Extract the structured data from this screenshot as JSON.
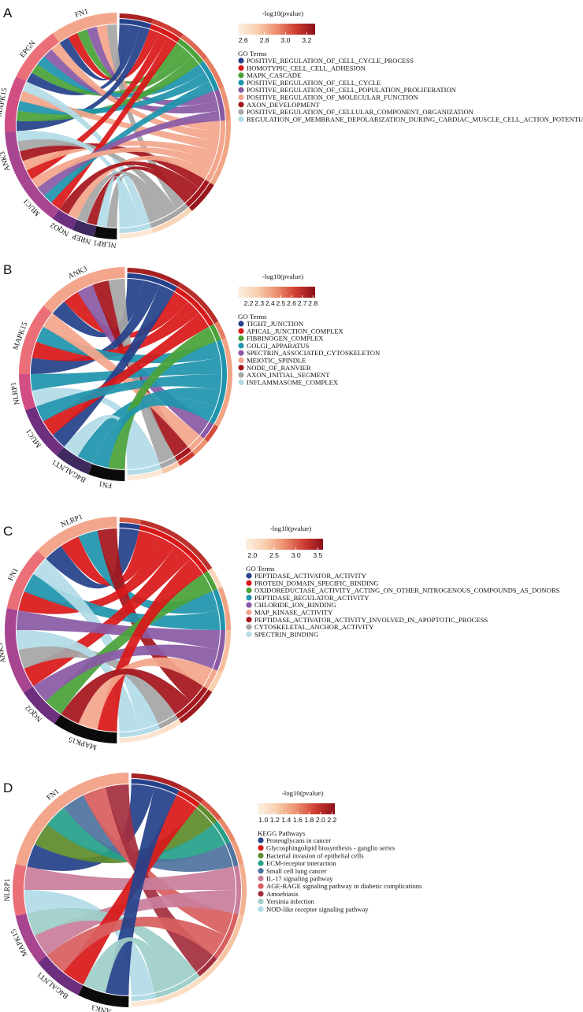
{
  "colors": {
    "term_palette": [
      "#26428b",
      "#d9191a",
      "#4aa23a",
      "#2094ad",
      "#8a5aa5",
      "#f3a68c",
      "#a5171d",
      "#a6a6a6",
      "#b2dbe7"
    ],
    "kegg_palette": [
      "#26428b",
      "#d9191a",
      "#5f8c2c",
      "#26a08a",
      "#50739f",
      "#c97e9b",
      "#d85f5f",
      "#a52f3f",
      "#9ecfc8",
      "#b2dbe7"
    ],
    "gene_palette": [
      "#f3a68c",
      "#eb6f79",
      "#d04e82",
      "#a84591",
      "#6f2f7f",
      "#3e2a5e",
      "#0b0b0b"
    ],
    "scale_gradient": [
      "#fdf1e4",
      "#f8cfae",
      "#ec8f6f",
      "#cf3d32",
      "#8b1018"
    ]
  },
  "chart_data": [
    {
      "panel": "A",
      "type": "chord",
      "genes": [
        "FN1",
        "EPGN",
        "MAPK15",
        "ANK3",
        "MUC1",
        "NQO2",
        "NREP",
        "NLRP1"
      ],
      "legend_title": "GO Terms",
      "terms": [
        {
          "name": "POSITIVE_REGULATION_OF_CELL_CYCLE_PROCESS",
          "neglog10p": 3.2
        },
        {
          "name": "HOMOTYPIC_CELL_CELL_ADHESION",
          "neglog10p": 3.1
        },
        {
          "name": "MAPK_CASCADE",
          "neglog10p": 3.0
        },
        {
          "name": "POSITIVE_REGULATION_OF_CELL_CYCLE",
          "neglog10p": 2.95
        },
        {
          "name": "POSITIVE_REGULATION_OF_CELL_POPULATION_PROLIFERATION",
          "neglog10p": 2.9
        },
        {
          "name": "POSITIVE_REGULATION_OF_MOLECULAR_FUNCTION",
          "neglog10p": 2.85
        },
        {
          "name": "AXON_DEVELOPMENT",
          "neglog10p": 3.25
        },
        {
          "name": "POSITIVE_REGULATION_OF_CELLULAR_COMPONENT_ORGANIZATION",
          "neglog10p": 2.7
        },
        {
          "name": "REGULATION_OF_MEMBRANE_DEPOLARIZATION_DURING_CARDIAC_MUSCLE_CELL_ACTION_POTENTIAL",
          "neglog10p": 2.6
        }
      ],
      "links": [
        [
          "FN1",
          0
        ],
        [
          "FN1",
          1
        ],
        [
          "FN1",
          2
        ],
        [
          "FN1",
          4
        ],
        [
          "FN1",
          5
        ],
        [
          "FN1",
          7
        ],
        [
          "EPGN",
          0
        ],
        [
          "EPGN",
          2
        ],
        [
          "EPGN",
          3
        ],
        [
          "EPGN",
          4
        ],
        [
          "EPGN",
          5
        ],
        [
          "MAPK15",
          0
        ],
        [
          "MAPK15",
          2
        ],
        [
          "MAPK15",
          3
        ],
        [
          "MAPK15",
          5
        ],
        [
          "MAPK15",
          8
        ],
        [
          "ANK3",
          1
        ],
        [
          "ANK3",
          5
        ],
        [
          "ANK3",
          6
        ],
        [
          "ANK3",
          7
        ],
        [
          "ANK3",
          8
        ],
        [
          "MUC1",
          1
        ],
        [
          "MUC1",
          3
        ],
        [
          "MUC1",
          4
        ],
        [
          "MUC1",
          5
        ],
        [
          "NQO2",
          5
        ],
        [
          "NQO2",
          6
        ],
        [
          "NREP",
          6
        ],
        [
          "NREP",
          7
        ],
        [
          "NLRP1",
          7
        ],
        [
          "NLRP1",
          8
        ]
      ],
      "scale": {
        "title": "-log10(pvalue)",
        "min": 2.55,
        "max": 3.28,
        "ticks": [
          "2.6",
          "2.8",
          "3.0",
          "3.2"
        ],
        "tick_values": [
          2.6,
          2.8,
          3.0,
          3.2
        ]
      }
    },
    {
      "panel": "B",
      "type": "chord",
      "genes": [
        "ANK3",
        "MAPK15",
        "NLRP1",
        "MUC1",
        "B4GALNT1",
        "FN1"
      ],
      "legend_title": "GO Terms",
      "terms": [
        {
          "name": "TIGHT_JUNCTION",
          "neglog10p": 2.75
        },
        {
          "name": "APICAL_JUNCTION_COMPLEX",
          "neglog10p": 2.7
        },
        {
          "name": "FIBRINOGEN_COMPLEX",
          "neglog10p": 2.5
        },
        {
          "name": "GOLGI_APPARATUS",
          "neglog10p": 2.4
        },
        {
          "name": "SPECTRIN_ASSOCIATED_CYTOSKELETON",
          "neglog10p": 2.6
        },
        {
          "name": "MEIOTIC_SPINDLE",
          "neglog10p": 2.45
        },
        {
          "name": "NODE_OF_RANVIER",
          "neglog10p": 2.65
        },
        {
          "name": "AXON_INITIAL_SEGMENT",
          "neglog10p": 2.3
        },
        {
          "name": "INFLAMMASOME_COMPLEX",
          "neglog10p": 2.15
        }
      ],
      "links": [
        [
          "ANK3",
          0
        ],
        [
          "ANK3",
          1
        ],
        [
          "ANK3",
          4
        ],
        [
          "ANK3",
          6
        ],
        [
          "ANK3",
          7
        ],
        [
          "MAPK15",
          0
        ],
        [
          "MAPK15",
          1
        ],
        [
          "MAPK15",
          3
        ],
        [
          "MAPK15",
          5
        ],
        [
          "NLRP1",
          8
        ],
        [
          "NLRP1",
          3
        ],
        [
          "MUC1",
          0
        ],
        [
          "MUC1",
          1
        ],
        [
          "MUC1",
          3
        ],
        [
          "B4GALNT1",
          3
        ],
        [
          "B4GALNT1",
          8
        ],
        [
          "FN1",
          2
        ],
        [
          "FN1",
          3
        ]
      ],
      "scale": {
        "title": "-log10(pvalue)",
        "min": 2.1,
        "max": 2.82,
        "ticks": [
          "2.2",
          "2.3",
          "2.4",
          "2.5",
          "2.6",
          "2.7",
          "2.8"
        ],
        "tick_values": [
          2.2,
          2.3,
          2.4,
          2.5,
          2.6,
          2.7,
          2.8
        ]
      }
    },
    {
      "panel": "C",
      "type": "chord",
      "genes": [
        "NLRP1",
        "FN1",
        "ANK3",
        "NQO2",
        "MAPK15"
      ],
      "legend_title": "GO Terms",
      "terms": [
        {
          "name": "PEPTIDASE_ACTIVATOR_ACTIVITY",
          "neglog10p": 3.0
        },
        {
          "name": "PROTEIN_DOMAIN_SPECIFIC_BINDING",
          "neglog10p": 3.3
        },
        {
          "name": "OXIDOREDUCTASE_ACTIVITY_ACTING_ON_OTHER_NITROGENOUS_COMPOUNDS_AS_DONORS",
          "neglog10p": 2.2
        },
        {
          "name": "PEPTIDASE_REGULATOR_ACTIVITY",
          "neglog10p": 2.6
        },
        {
          "name": "CHLORIDE_ION_BINDING",
          "neglog10p": 2.4
        },
        {
          "name": "MAP_KINASE_ACTIVITY",
          "neglog10p": 2.3
        },
        {
          "name": "PEPTIDASE_ACTIVATOR_ACTIVITY_INVOLVED_IN_APOPTOTIC_PROCESS",
          "neglog10p": 3.5
        },
        {
          "name": "CYTOSKELETAL_ANCHOR_ACTIVITY",
          "neglog10p": 2.1
        },
        {
          "name": "SPECTRIN_BINDING",
          "neglog10p": 2.0
        }
      ],
      "links": [
        [
          "NLRP1",
          0
        ],
        [
          "NLRP1",
          1
        ],
        [
          "NLRP1",
          3
        ],
        [
          "NLRP1",
          6
        ],
        [
          "FN1",
          1
        ],
        [
          "FN1",
          3
        ],
        [
          "FN1",
          8
        ],
        [
          "ANK3",
          1
        ],
        [
          "ANK3",
          7
        ],
        [
          "ANK3",
          8
        ],
        [
          "ANK3",
          4
        ],
        [
          "NQO2",
          2
        ],
        [
          "NQO2",
          4
        ],
        [
          "MAPK15",
          1
        ],
        [
          "MAPK15",
          5
        ],
        [
          "MAPK15",
          6
        ]
      ],
      "scale": {
        "title": "-log10(pvalue)",
        "min": 1.85,
        "max": 3.62,
        "ticks": [
          "2.0",
          "2.5",
          "3.0",
          "3.5"
        ],
        "tick_values": [
          2.0,
          2.5,
          3.0,
          3.5
        ]
      }
    },
    {
      "panel": "D",
      "type": "chord",
      "genes": [
        "FN1",
        "NLRP1",
        "MAPK15",
        "B4GALNT1",
        "ANK3"
      ],
      "legend_title": "KEGG Pathways",
      "terms": [
        {
          "name": "Proteoglycans in cancer",
          "neglog10p": 2.1
        },
        {
          "name": "Glycosphingolipid biosynthesis - ganglio series",
          "neglog10p": 2.0
        },
        {
          "name": "Bacterial invasion of epithelial cells",
          "neglog10p": 1.8
        },
        {
          "name": "ECM-receptor interaction",
          "neglog10p": 1.6
        },
        {
          "name": "Small cell lung cancer",
          "neglog10p": 1.5
        },
        {
          "name": "IL-17 signaling pathway",
          "neglog10p": 1.4
        },
        {
          "name": "AGE-RAGE signaling pathway in diabetic complications",
          "neglog10p": 1.3
        },
        {
          "name": "Amoebiasis",
          "neglog10p": 1.2
        },
        {
          "name": "Yersinia infection",
          "neglog10p": 1.1
        },
        {
          "name": "NOD-like receptor signaling pathway",
          "neglog10p": 1.0
        }
      ],
      "links": [
        [
          "FN1",
          0
        ],
        [
          "FN1",
          2
        ],
        [
          "FN1",
          3
        ],
        [
          "FN1",
          4
        ],
        [
          "FN1",
          6
        ],
        [
          "FN1",
          7
        ],
        [
          "NLRP1",
          9
        ],
        [
          "NLRP1",
          5
        ],
        [
          "MAPK15",
          5
        ],
        [
          "MAPK15",
          8
        ],
        [
          "B4GALNT1",
          1
        ],
        [
          "B4GALNT1",
          6
        ],
        [
          "ANK3",
          0
        ],
        [
          "ANK3",
          8
        ]
      ],
      "scale": {
        "title": "-log10(pvalue)",
        "min": 0.9,
        "max": 2.25,
        "ticks": [
          "1.0",
          "1.2",
          "1.4",
          "1.6",
          "1.8",
          "2.0",
          "2.2"
        ],
        "tick_values": [
          1.0,
          1.2,
          1.4,
          1.6,
          1.8,
          2.0,
          2.2
        ]
      }
    }
  ]
}
